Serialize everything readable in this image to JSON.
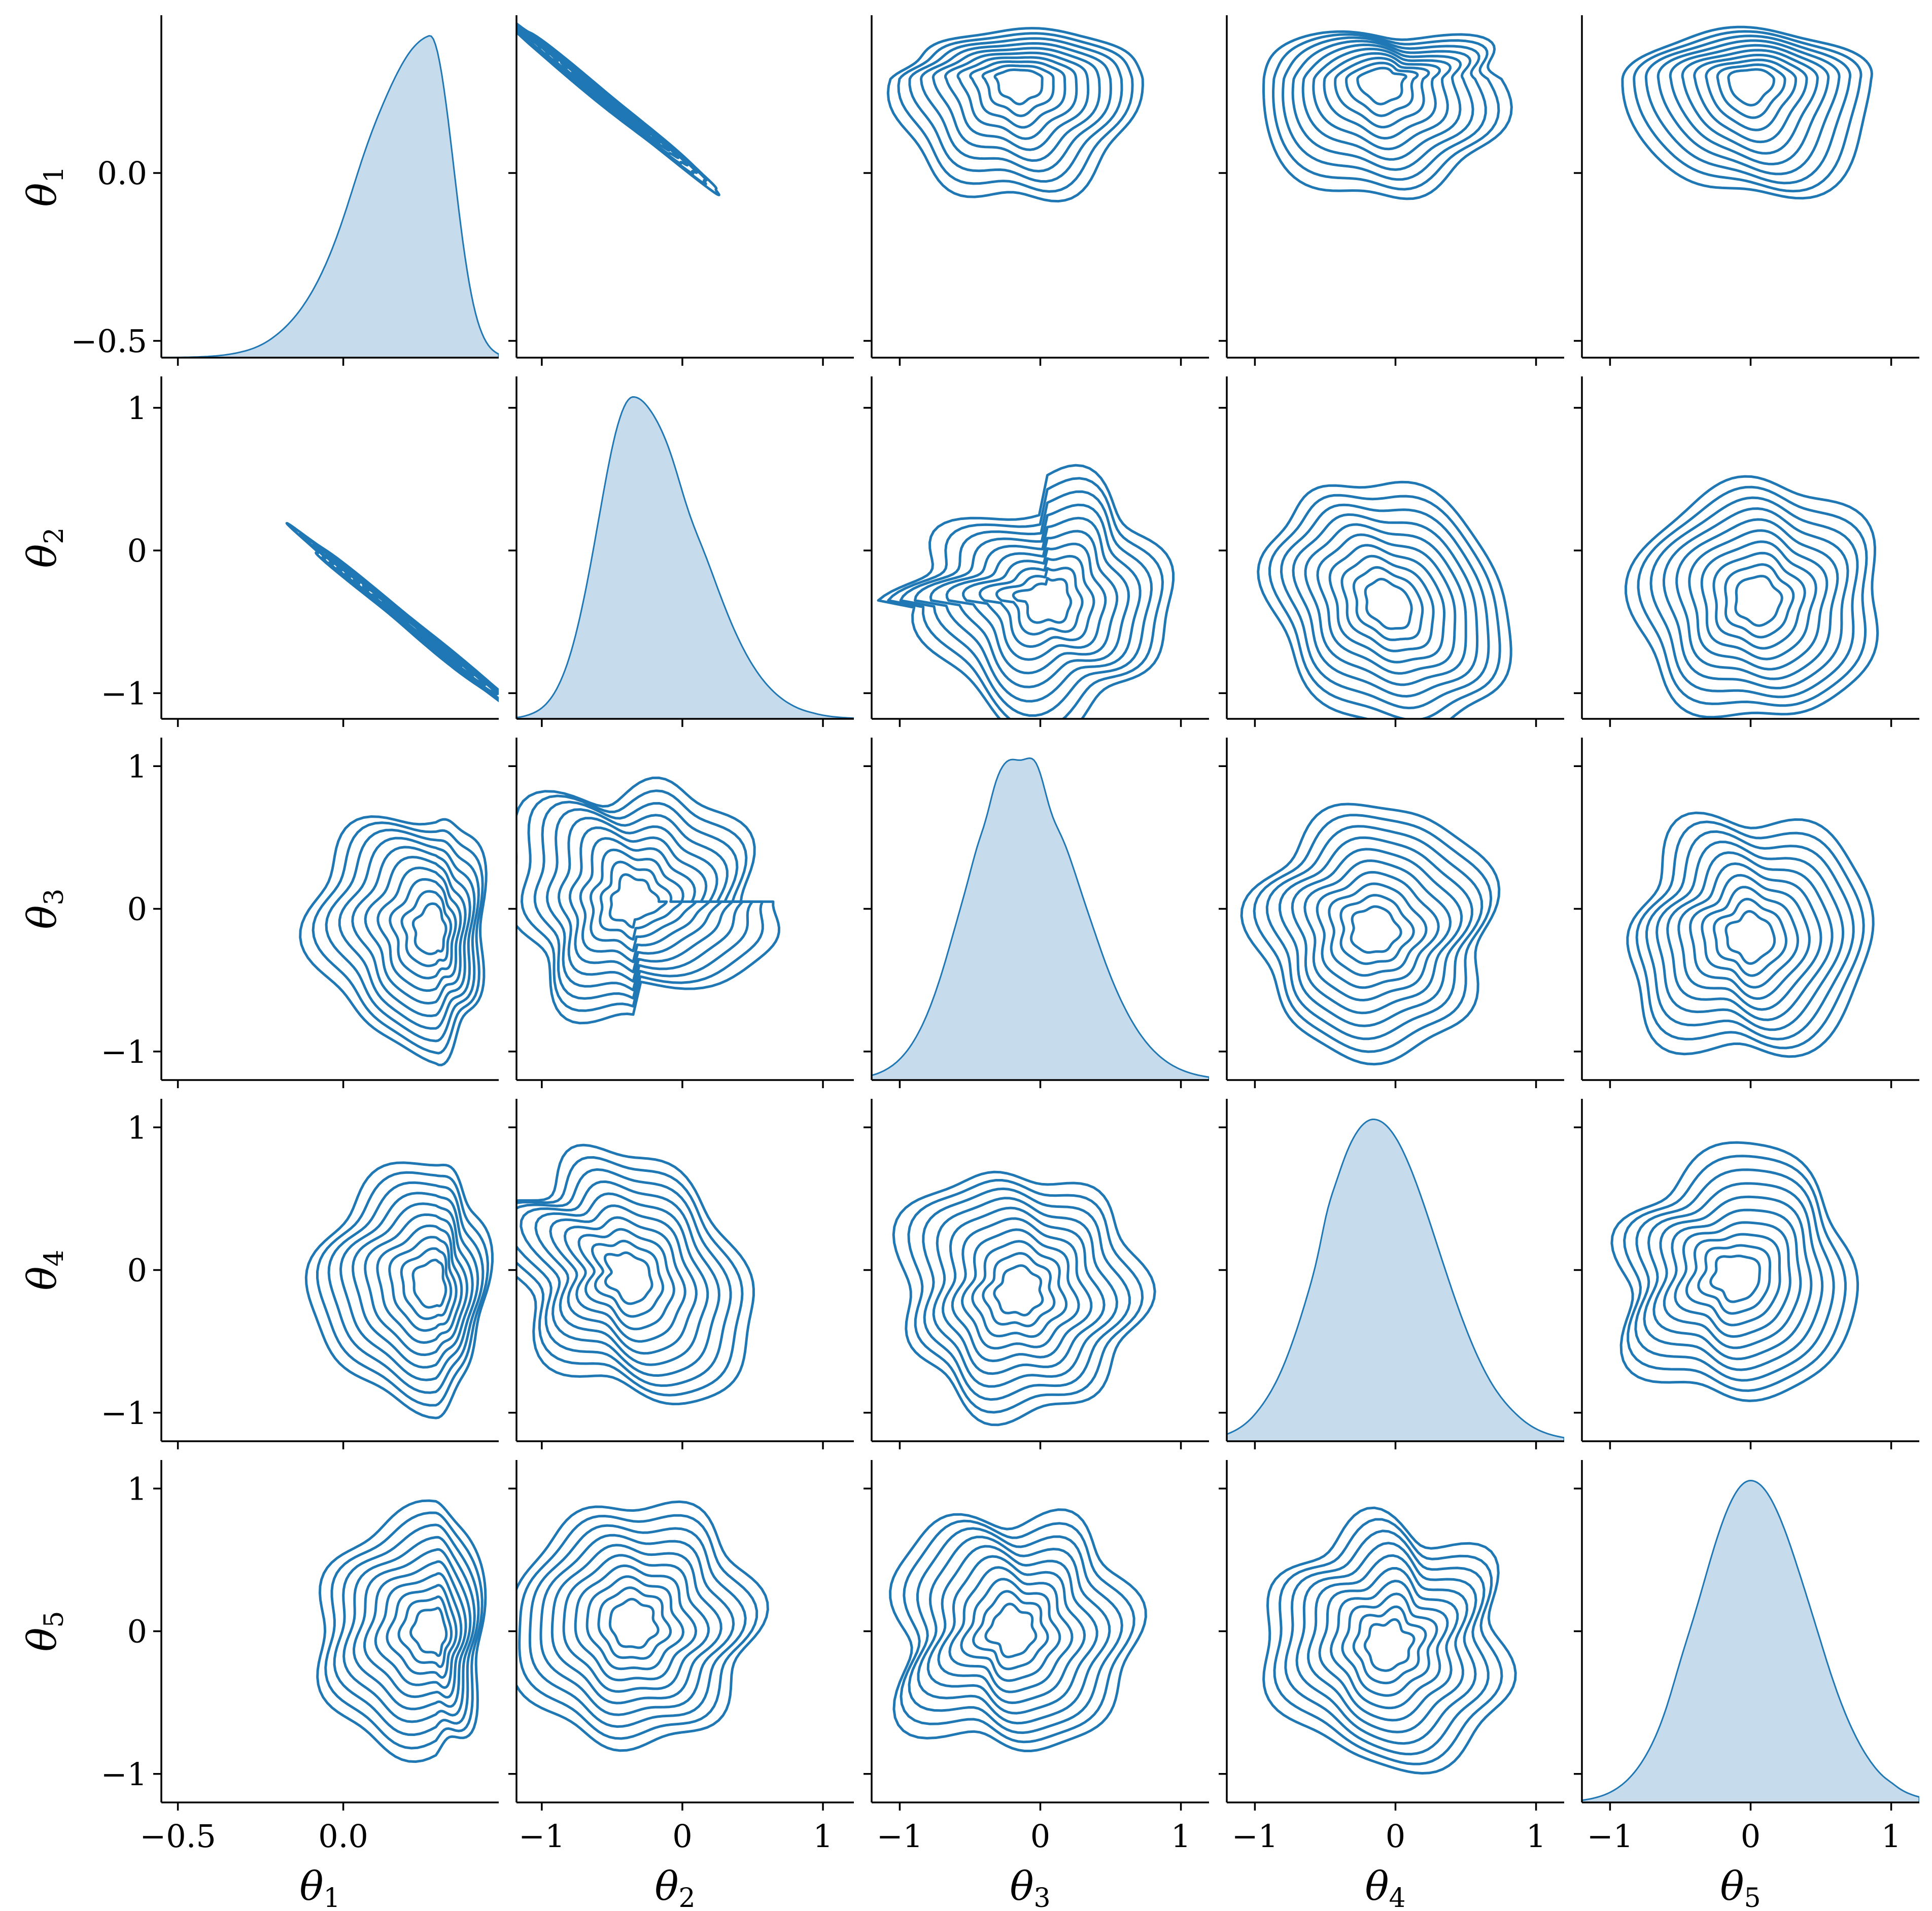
{
  "chart_data": {
    "type": "pairplot",
    "kind": "kde",
    "lower": "kde-contour",
    "upper": "kde-contour",
    "diag": "kde-filled",
    "contour_levels": 10,
    "color": "#1f77b4",
    "diag_fill_color": "#c6dbec",
    "grid": false,
    "variables": [
      {
        "key": "theta_1",
        "label_symbol": "θ",
        "label_sub": "1",
        "range": [
          -0.55,
          0.47
        ],
        "ticks": [
          -0.5,
          0.0
        ],
        "tick_labels": [
          "−0.5",
          "0.0"
        ],
        "distribution": {
          "mode": 0.26,
          "spread_left": 0.2,
          "spread_right": 0.07,
          "skew": "left"
        }
      },
      {
        "key": "theta_2",
        "label_symbol": "θ",
        "label_sub": "2",
        "range": [
          -1.18,
          1.22
        ],
        "ticks": [
          -1,
          0,
          1
        ],
        "tick_labels": [
          "−1",
          "0",
          "1"
        ],
        "distribution": {
          "mode": -0.35,
          "spread_left": 0.25,
          "spread_right": 0.45,
          "skew": "right"
        }
      },
      {
        "key": "theta_3",
        "label_symbol": "θ",
        "label_sub": "3",
        "range": [
          -1.2,
          1.2
        ],
        "ticks": [
          -1,
          0,
          1
        ],
        "tick_labels": [
          "−1",
          "0",
          "1"
        ],
        "distribution": {
          "mode": -0.18,
          "spread_left": 0.35,
          "spread_right": 0.45,
          "skew": "none"
        }
      },
      {
        "key": "theta_4",
        "label_symbol": "θ",
        "label_sub": "4",
        "range": [
          -1.2,
          1.2
        ],
        "ticks": [
          -1,
          0,
          1
        ],
        "tick_labels": [
          "−1",
          "0",
          "1"
        ],
        "distribution": {
          "mode": -0.15,
          "spread_left": 0.38,
          "spread_right": 0.45,
          "skew": "none"
        }
      },
      {
        "key": "theta_5",
        "label_symbol": "θ",
        "label_sub": "5",
        "range": [
          -1.2,
          1.2
        ],
        "ticks": [
          -1,
          0,
          1
        ],
        "tick_labels": [
          "−1",
          "0",
          "1"
        ],
        "distribution": {
          "mode": 0.0,
          "spread_left": 0.38,
          "spread_right": 0.42,
          "skew": "none"
        }
      }
    ],
    "pair_shapes": {
      "theta_1|theta_2": {
        "center": [
          0.22,
          -0.55
        ],
        "relation": "curved-negative"
      },
      "theta_1|theta_3": {
        "center": [
          0.28,
          -0.15
        ],
        "relation": "edge-bounded"
      },
      "theta_1|theta_4": {
        "center": [
          0.28,
          -0.1
        ],
        "relation": "edge-bounded"
      },
      "theta_1|theta_5": {
        "center": [
          0.28,
          0.0
        ],
        "relation": "edge-bounded"
      },
      "theta_2|theta_3": {
        "center": [
          -0.35,
          0.05
        ],
        "relation": "l-shaped"
      },
      "theta_2|theta_4": {
        "center": [
          -0.38,
          -0.05
        ],
        "relation": "weak-negative"
      },
      "theta_2|theta_5": {
        "center": [
          -0.35,
          0.05
        ],
        "relation": "independent"
      },
      "theta_3|theta_4": {
        "center": [
          -0.15,
          -0.15
        ],
        "relation": "independent"
      },
      "theta_3|theta_5": {
        "center": [
          -0.2,
          0.0
        ],
        "relation": "independent"
      },
      "theta_4|theta_5": {
        "center": [
          -0.05,
          -0.1
        ],
        "relation": "independent"
      }
    }
  }
}
